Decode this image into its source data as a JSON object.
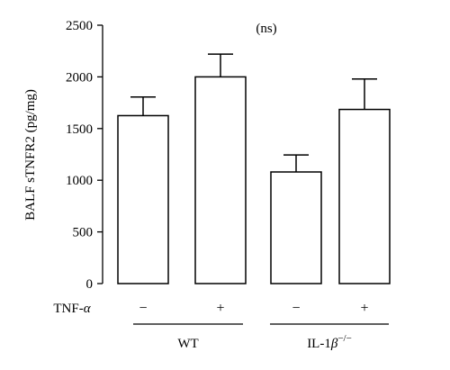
{
  "chart_data": {
    "type": "bar",
    "title": "",
    "annotation": "(ns)",
    "ylabel": "BALF sTNFR2 (pg/mg)",
    "xlabel": "",
    "ylim": [
      0,
      2500
    ],
    "yticks": [
      0,
      500,
      1000,
      1500,
      2000,
      2500
    ],
    "row_label": "TNF-α",
    "treatment_signs": [
      "−",
      "+",
      "−",
      "+"
    ],
    "groups": [
      {
        "name": "WT",
        "bars": [
          0,
          1
        ]
      },
      {
        "name": "IL-1β−/−",
        "bars": [
          2,
          3
        ]
      }
    ],
    "values": [
      1625,
      2000,
      1080,
      1685
    ],
    "errors": [
      180,
      220,
      165,
      295
    ],
    "bar_fill": "#ffffff",
    "bar_stroke": "#000000",
    "grid": false,
    "legend": "none"
  }
}
